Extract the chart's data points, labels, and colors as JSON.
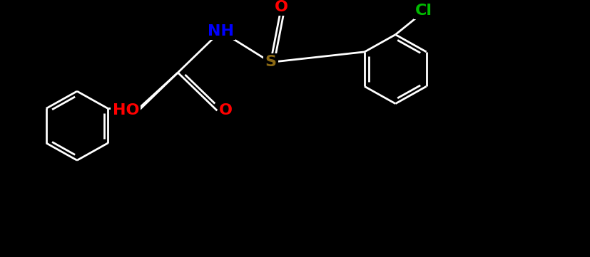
{
  "bg_color": "#000000",
  "line_color": "#ffffff",
  "line_width": 2.0,
  "figsize": [
    8.27,
    3.61
  ],
  "dpi": 100,
  "atom_labels": {
    "NH": {
      "color": "#0000ff"
    },
    "S": {
      "color": "#8B6914"
    },
    "O": {
      "color": "#ff0000"
    },
    "Cl": {
      "color": "#00bb00"
    },
    "HO": {
      "color": "#ff0000"
    }
  }
}
